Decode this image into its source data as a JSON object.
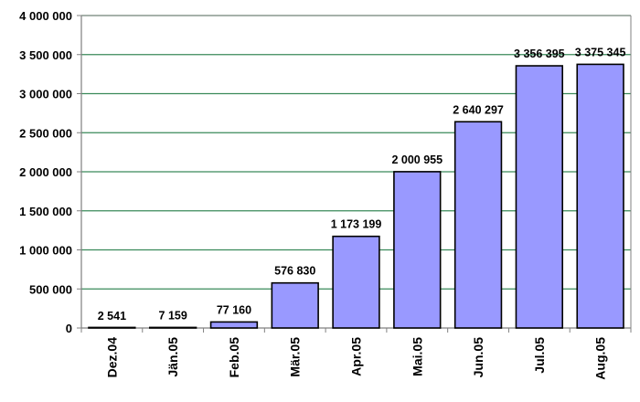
{
  "chart_data": {
    "type": "bar",
    "title": "",
    "xlabel": "",
    "ylabel": "",
    "categories": [
      "Dez.04",
      "Jän.05",
      "Feb.05",
      "Mär.05",
      "Apr.05",
      "Mai.05",
      "Jun.05",
      "Jul.05",
      "Aug.05"
    ],
    "values": [
      2541,
      7159,
      77160,
      576830,
      1173199,
      2000955,
      2640297,
      3356395,
      3375345
    ],
    "value_labels": [
      "2 541",
      "7 159",
      "77 160",
      "576 830",
      "1 173 199",
      "2 000 955",
      "2 640 297",
      "3 356 395",
      "3 375 345"
    ],
    "ylim": [
      0,
      4000000
    ],
    "yticks": [
      0,
      500000,
      1000000,
      1500000,
      2000000,
      2500000,
      3000000,
      3500000,
      4000000
    ],
    "ytick_labels": [
      "0",
      "500 000",
      "1 000 000",
      "1 500 000",
      "2 000 000",
      "2 500 000",
      "3 000 000",
      "3 500 000",
      "4 000 000"
    ],
    "grid": true,
    "legend": "none",
    "colors": {
      "bar_fill": "#9999ff",
      "bar_stroke": "#000000",
      "grid": "#3a8a5a",
      "axis": "#808080"
    }
  }
}
